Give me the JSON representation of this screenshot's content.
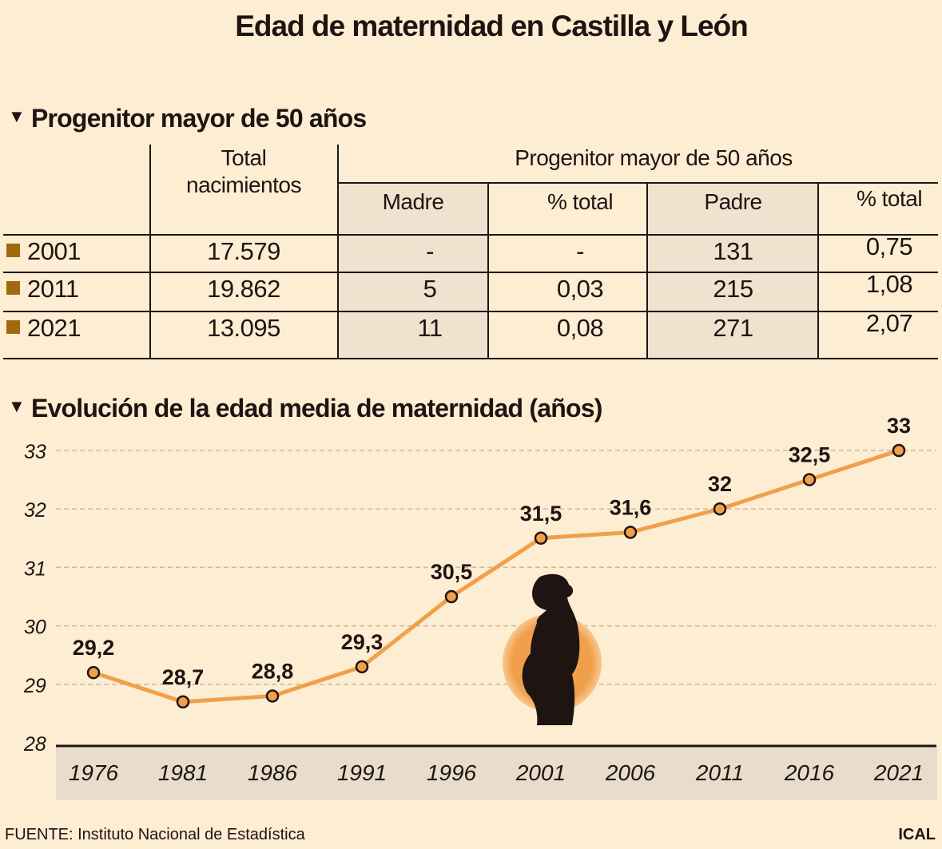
{
  "title": "Edad de maternidad en Castilla y León",
  "table_section": {
    "heading": "Progenitor mayor de 50 años",
    "headers": {
      "total": [
        "Total",
        "nacimientos"
      ],
      "group": "Progenitor mayor de 50 años",
      "madre": "Madre",
      "pct_madre": "% total",
      "padre": "Padre",
      "pct_padre": "% total"
    },
    "rows": [
      {
        "year": "2001",
        "total": "17.579",
        "madre": "-",
        "pct_madre": "-",
        "padre": "131",
        "pct_padre": "0,75"
      },
      {
        "year": "2011",
        "total": "19.862",
        "madre": "5",
        "pct_madre": "0,03",
        "padre": "215",
        "pct_padre": "1,08"
      },
      {
        "year": "2021",
        "total": "13.095",
        "madre": "11",
        "pct_madre": "0,08",
        "padre": "271",
        "pct_padre": "2,07"
      }
    ]
  },
  "chart_data": {
    "type": "line",
    "title": "Evolución de la edad media de maternidad (años)",
    "x": [
      1976,
      1981,
      1986,
      1991,
      1996,
      2001,
      2006,
      2011,
      2016,
      2021
    ],
    "x_tick_labels": [
      "1976",
      "1981",
      "1986",
      "1991",
      "1996",
      "2001",
      "2006",
      "2011",
      "2016",
      "2021"
    ],
    "values": [
      29.2,
      28.7,
      28.8,
      29.3,
      30.5,
      31.5,
      31.6,
      32,
      32.5,
      33
    ],
    "data_labels": [
      "29,2",
      "28,7",
      "28,8",
      "29,3",
      "30,5",
      "31,5",
      "31,6",
      "32",
      "32,5",
      "33"
    ],
    "y_ticks": [
      28,
      29,
      30,
      31,
      32,
      33
    ],
    "ylim": [
      28,
      33
    ],
    "grid": "horizontal dashed",
    "line_color": "#f0a04b",
    "marker_color": "#f0a04b",
    "illustration": "pregnant-woman-silhouette"
  },
  "colors": {
    "background": "#fdedd3",
    "shaded": "#f1e1cf",
    "bullet": "#a0690f",
    "text": "#1e1412"
  },
  "footer": {
    "source": "FUENTE: Instituto Nacional de Estadística",
    "brand": "ICAL"
  }
}
